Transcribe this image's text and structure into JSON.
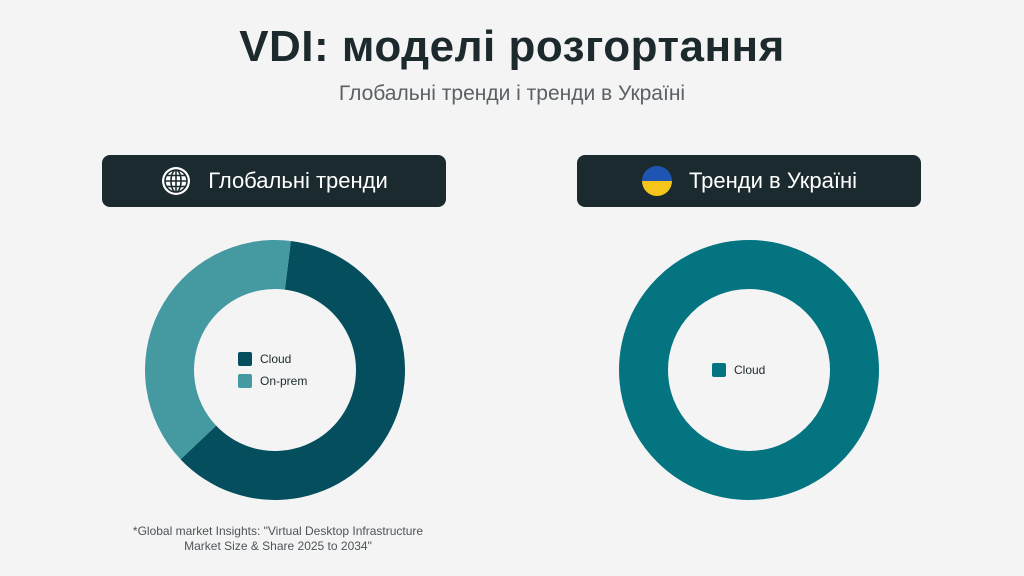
{
  "header": {
    "title": "VDI: моделі розгортання",
    "subtitle": "Глобальні тренди і тренди в Україні"
  },
  "panels": {
    "global": {
      "label": "Глобальні тренди",
      "icon": "globe-icon"
    },
    "ukraine": {
      "label": "Тренди в Україні",
      "icon": "ukraine-flag-icon"
    }
  },
  "colors": {
    "cloud_dark": "#044e5e",
    "on_prem": "#459aa2",
    "cloud_ukraine": "#037480",
    "flag_blue": "#1e55b3",
    "flag_yellow": "#f5c51b"
  },
  "chart_data": [
    {
      "type": "pie",
      "donut": true,
      "categories": [
        "Cloud",
        "On-prem"
      ],
      "values": [
        61,
        39
      ],
      "colors": [
        "#044e5e",
        "#459aa2"
      ],
      "legend": "center"
    },
    {
      "type": "pie",
      "donut": true,
      "categories": [
        "Cloud"
      ],
      "values": [
        100
      ],
      "colors": [
        "#037480"
      ],
      "legend": "center"
    }
  ],
  "footnote": {
    "line1": "*Global market Insights: \"Virtual Desktop Infrastructure",
    "line2": "Market Size & Share 2025 to 2034\""
  }
}
